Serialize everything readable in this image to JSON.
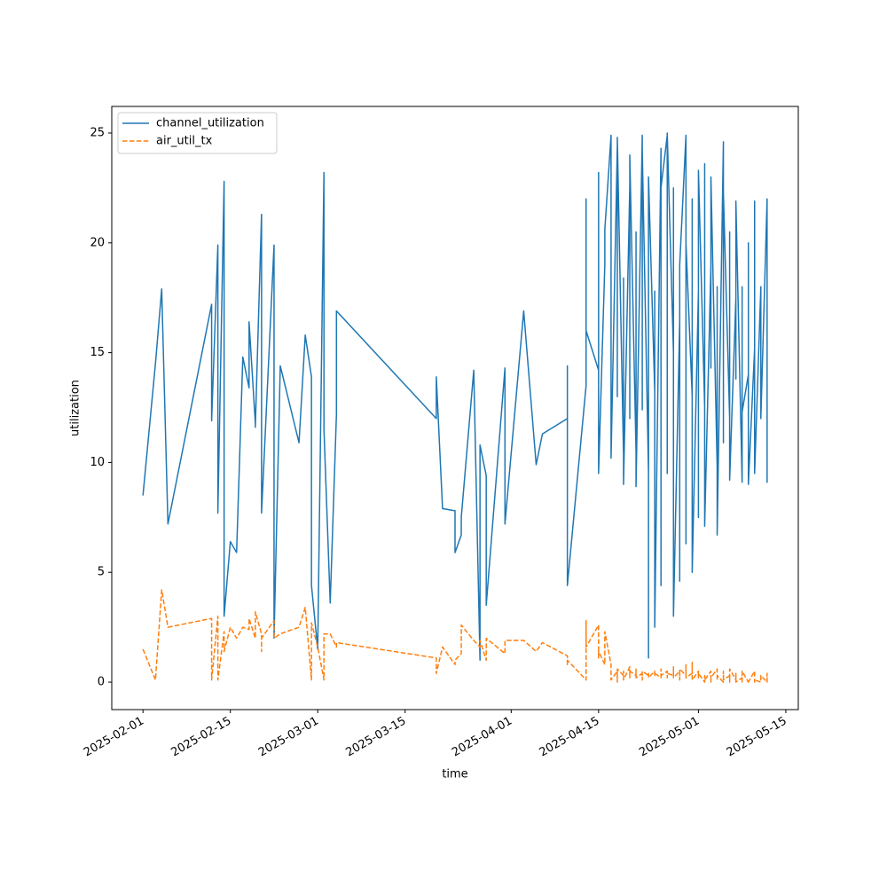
{
  "chart_data": {
    "type": "line",
    "x_label": "time",
    "y_label": "utilization",
    "x": [
      "2025-02-01",
      "2025-02-03",
      "2025-02-04",
      "2025-02-05",
      "2025-02-12",
      "2025-02-12",
      "2025-02-13",
      "2025-02-13",
      "2025-02-14",
      "2025-02-14",
      "2025-02-15",
      "2025-02-16",
      "2025-02-17",
      "2025-02-18",
      "2025-02-18",
      "2025-02-19",
      "2025-02-19",
      "2025-02-20",
      "2025-02-20",
      "2025-02-20",
      "2025-02-22",
      "2025-02-22",
      "2025-02-23",
      "2025-02-26",
      "2025-02-27",
      "2025-02-28",
      "2025-02-28",
      "2025-03-01",
      "2025-03-02",
      "2025-03-02",
      "2025-03-03",
      "2025-03-04",
      "2025-03-04",
      "2025-03-20",
      "2025-03-20",
      "2025-03-21",
      "2025-03-23",
      "2025-03-23",
      "2025-03-24",
      "2025-03-24",
      "2025-03-26",
      "2025-03-27",
      "2025-03-27",
      "2025-03-28",
      "2025-03-28",
      "2025-03-31",
      "2025-03-31",
      "2025-04-03",
      "2025-04-05",
      "2025-04-06",
      "2025-04-10",
      "2025-04-10",
      "2025-04-10",
      "2025-04-13",
      "2025-04-13",
      "2025-04-13",
      "2025-04-15",
      "2025-04-15",
      "2025-04-15",
      "2025-04-16",
      "2025-04-16",
      "2025-04-17",
      "2025-04-17",
      "2025-04-18",
      "2025-04-18",
      "2025-04-18",
      "2025-04-19",
      "2025-04-19",
      "2025-04-19",
      "2025-04-20",
      "2025-04-20",
      "2025-04-20",
      "2025-04-21",
      "2025-04-21",
      "2025-04-21",
      "2025-04-22",
      "2025-04-22",
      "2025-04-22",
      "2025-04-23",
      "2025-04-23",
      "2025-04-23",
      "2025-04-24",
      "2025-04-24",
      "2025-04-24",
      "2025-04-25",
      "2025-04-25",
      "2025-04-25",
      "2025-04-26",
      "2025-04-26",
      "2025-04-26",
      "2025-04-27",
      "2025-04-27",
      "2025-04-27",
      "2025-04-28",
      "2025-04-28",
      "2025-04-28",
      "2025-04-29",
      "2025-04-29",
      "2025-04-29",
      "2025-04-30",
      "2025-04-30",
      "2025-04-30",
      "2025-05-01",
      "2025-05-01",
      "2025-05-01",
      "2025-05-02",
      "2025-05-02",
      "2025-05-02",
      "2025-05-03",
      "2025-05-03",
      "2025-05-03",
      "2025-05-04",
      "2025-05-04",
      "2025-05-04",
      "2025-05-05",
      "2025-05-05",
      "2025-05-05",
      "2025-05-06",
      "2025-05-06",
      "2025-05-06",
      "2025-05-07",
      "2025-05-07",
      "2025-05-07",
      "2025-05-08",
      "2025-05-08",
      "2025-05-08",
      "2025-05-09",
      "2025-05-09",
      "2025-05-09",
      "2025-05-10",
      "2025-05-10",
      "2025-05-10",
      "2025-05-11",
      "2025-05-11",
      "2025-05-12",
      "2025-05-12",
      "2025-05-12",
      "2025-05-12"
    ],
    "series": [
      {
        "name": "channel_utilization",
        "color": "#1f77b4",
        "dash": "solid",
        "values": [
          8.5,
          14.5,
          17.9,
          7.2,
          17.2,
          11.9,
          19.9,
          7.7,
          22.8,
          3.0,
          6.4,
          5.9,
          14.8,
          13.4,
          16.4,
          11.8,
          11.6,
          21.3,
          9.4,
          7.7,
          19.9,
          2.0,
          14.4,
          10.9,
          15.8,
          13.9,
          4.4,
          1.5,
          23.2,
          11.5,
          3.6,
          12.2,
          16.9,
          12.0,
          13.9,
          7.9,
          7.8,
          5.9,
          6.7,
          7.5,
          14.2,
          1.0,
          10.8,
          9.4,
          3.5,
          14.3,
          7.2,
          16.9,
          9.9,
          11.3,
          12.0,
          14.4,
          4.4,
          13.5,
          22.0,
          16.0,
          14.2,
          23.2,
          9.5,
          19.0,
          20.6,
          24.9,
          10.2,
          24.4,
          13.0,
          24.8,
          10.3,
          18.4,
          9.0,
          22.6,
          12.0,
          24.0,
          10.5,
          20.5,
          8.9,
          24.9,
          12.4,
          24.2,
          9.5,
          1.1,
          23.0,
          13.2,
          17.8,
          2.5,
          24.3,
          4.4,
          22.5,
          24.9,
          9.5,
          25.0,
          15.0,
          22.5,
          3.0,
          16.5,
          4.6,
          19.0,
          24.9,
          6.3,
          20.0,
          13.0,
          22.0,
          5.0,
          17.8,
          7.5,
          23.3,
          12.5,
          23.6,
          7.1,
          19.0,
          14.3,
          23.0,
          9.8,
          18.0,
          6.7,
          24.6,
          10.9,
          22.3,
          12.0,
          20.5,
          9.2,
          17.5,
          13.8,
          21.9,
          9.1,
          18.0,
          12.3,
          14.0,
          20.0,
          9.0,
          15.2,
          21.9,
          9.5,
          18.0,
          12.0,
          22.0,
          9.1,
          18.0,
          12.3
        ]
      },
      {
        "name": "air_util_tx",
        "color": "#ff7f0e",
        "dash": "dashed",
        "values": [
          1.5,
          0.1,
          4.2,
          2.5,
          2.9,
          0.1,
          3.0,
          0.1,
          2.3,
          1.4,
          2.5,
          2.0,
          2.5,
          2.4,
          2.9,
          2.0,
          3.2,
          2.2,
          1.4,
          2.0,
          2.8,
          2.0,
          2.2,
          2.5,
          3.4,
          0.1,
          2.7,
          1.6,
          0.1,
          2.2,
          2.2,
          1.6,
          1.8,
          1.1,
          0.4,
          1.6,
          0.8,
          1.0,
          1.3,
          2.6,
          1.9,
          1.6,
          1.9,
          1.0,
          2.0,
          1.3,
          1.9,
          1.9,
          1.4,
          1.8,
          1.2,
          0.8,
          1.0,
          0.1,
          2.8,
          1.6,
          2.6,
          1.1,
          1.4,
          0.8,
          2.3,
          0.8,
          0.1,
          0.5,
          0.0,
          0.6,
          0.3,
          0.5,
          0.1,
          0.7,
          0.2,
          0.5,
          0.3,
          0.6,
          0.2,
          0.4,
          0.1,
          0.5,
          0.3,
          0.4,
          0.2,
          0.5,
          0.3,
          0.4,
          0.2,
          0.6,
          0.3,
          0.5,
          0.2,
          0.4,
          0.3,
          0.7,
          0.2,
          0.5,
          0.1,
          0.6,
          0.3,
          0.8,
          0.2,
          0.4,
          0.9,
          0.1,
          0.5,
          0.2,
          0.4,
          0.0,
          0.3,
          0.1,
          0.5,
          0.0,
          0.2,
          0.6,
          0.1,
          0.3,
          0.0,
          0.5,
          0.1,
          0.3,
          0.0,
          0.6,
          0.1,
          0.4,
          0.0,
          0.2,
          0.0,
          0.5,
          0.0,
          0.1,
          0.0,
          0.5,
          0.0,
          0.1,
          0.0,
          0.3,
          0.0,
          0.4,
          0.0,
          0.1
        ]
      }
    ],
    "xlim": [
      "2025-01-27",
      "2025-05-17"
    ],
    "xticks": [
      "2025-02-01",
      "2025-02-15",
      "2025-03-01",
      "2025-03-15",
      "2025-04-01",
      "2025-04-15",
      "2025-05-01",
      "2025-05-15"
    ],
    "ylim": [
      -1.25,
      26.21
    ],
    "yticks": [
      0,
      5,
      10,
      15,
      20,
      25
    ],
    "legend": "upper left",
    "grid": false
  }
}
